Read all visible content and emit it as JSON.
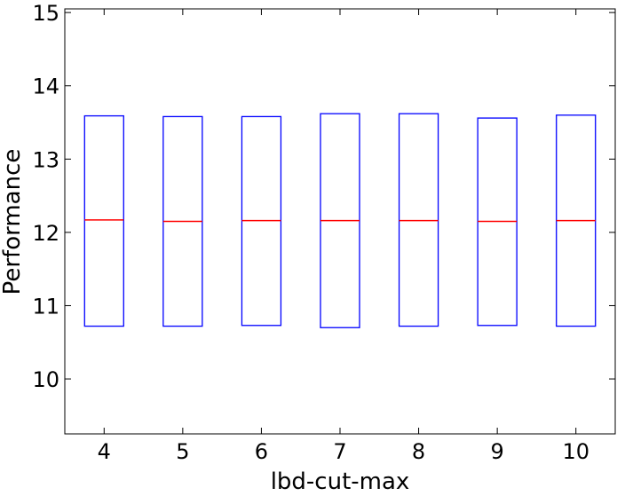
{
  "chart_data": {
    "type": "box",
    "x_label": "lbd-cut-max",
    "y_label": "Performance",
    "categories": [
      "4",
      "5",
      "6",
      "7",
      "8",
      "9",
      "10"
    ],
    "q1": [
      10.72,
      10.72,
      10.73,
      10.7,
      10.72,
      10.73,
      10.72
    ],
    "median": [
      12.17,
      12.15,
      12.16,
      12.16,
      12.16,
      12.15,
      12.16
    ],
    "q3": [
      13.59,
      13.58,
      13.58,
      13.62,
      13.62,
      13.56,
      13.6
    ],
    "box_color": "#0000ff",
    "median_color": "#ff0000",
    "ylim": [
      9.25,
      15.05
    ],
    "yticks": [
      10,
      11,
      12,
      13,
      14,
      15
    ]
  }
}
